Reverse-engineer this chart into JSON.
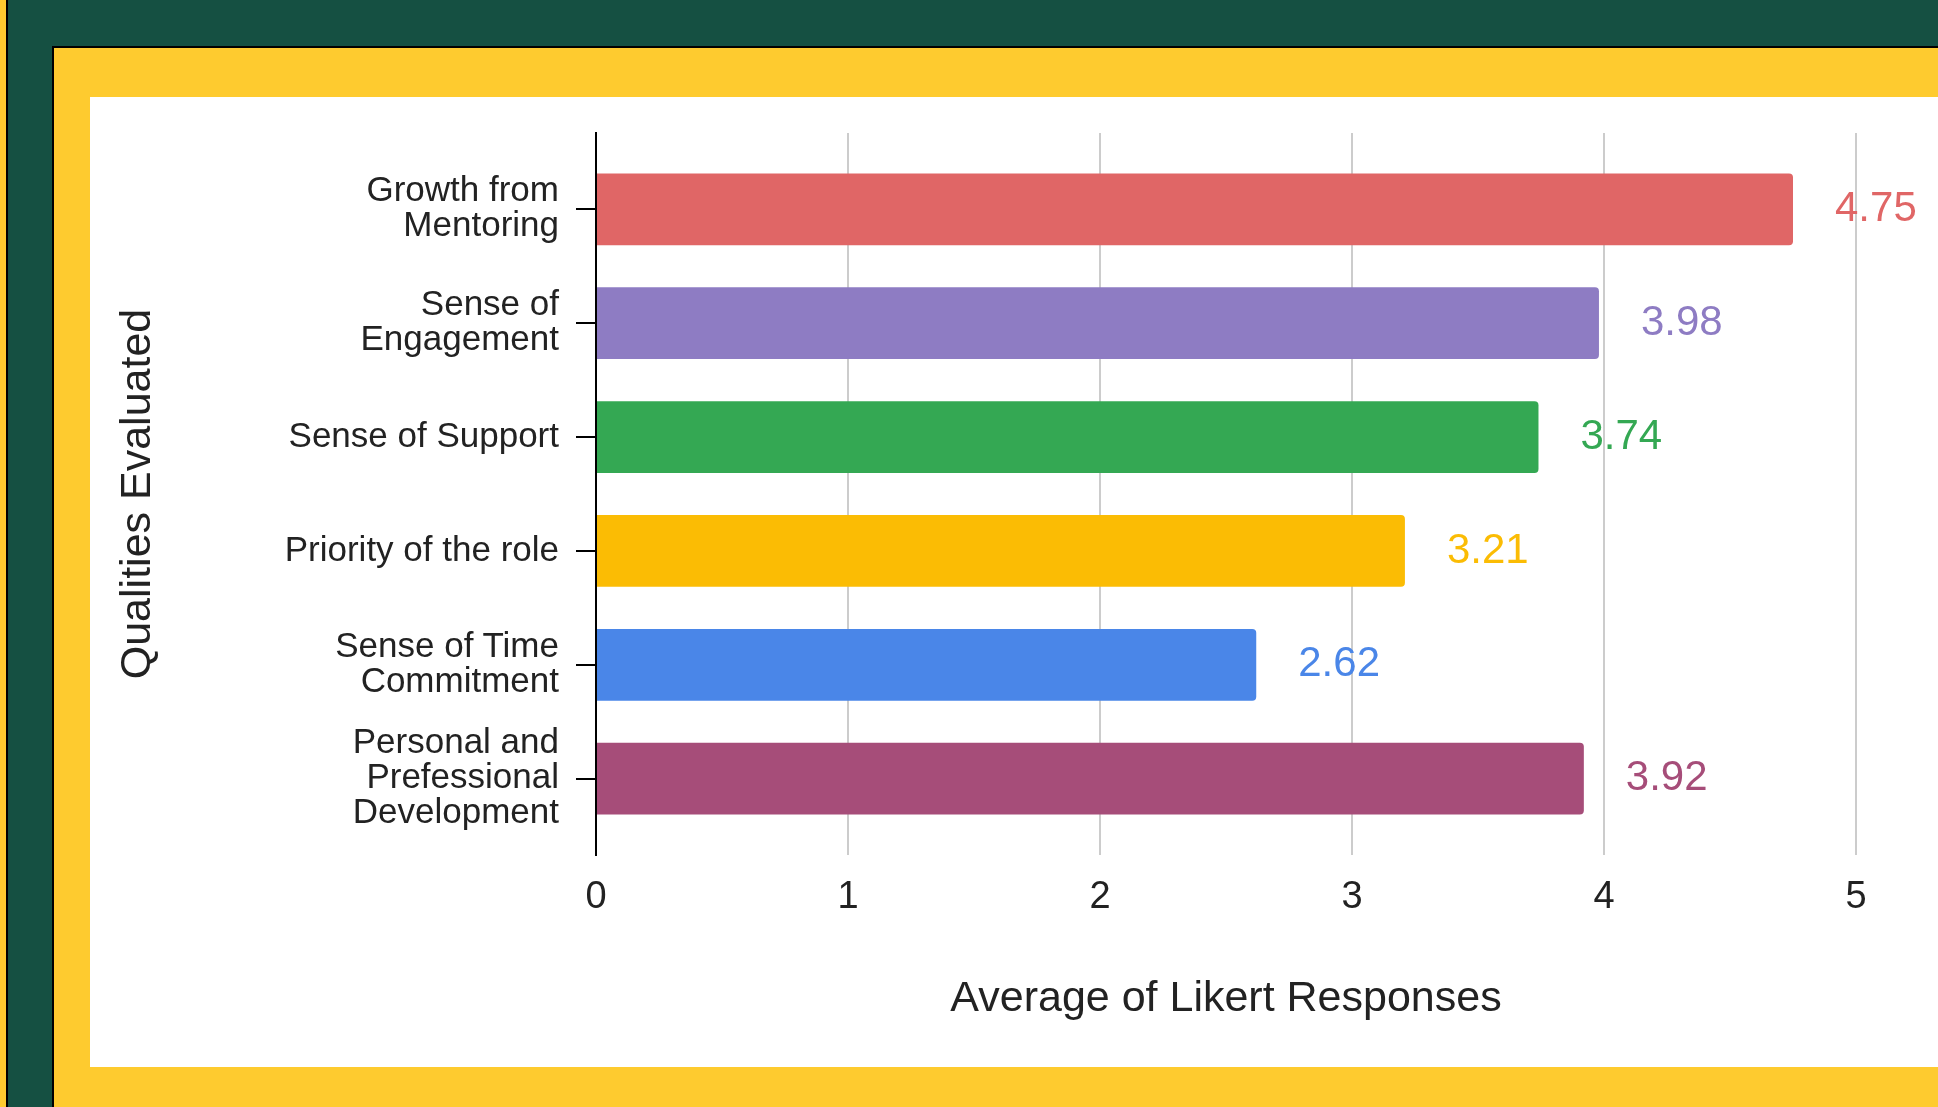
{
  "chart_data": {
    "type": "bar",
    "orientation": "horizontal",
    "xlabel": "Average of Likert Responses",
    "ylabel": "Qualities Evaluated",
    "categories": [
      "Growth from Mentoring",
      "Sense of Engagement",
      "Sense of Support",
      "Priority of the role",
      "Sense of Time Commitment",
      "Personal and Prefessional Development"
    ],
    "values": [
      4.75,
      3.98,
      3.74,
      3.21,
      2.62,
      3.92
    ],
    "colors": [
      "#e06666",
      "#8e7cc3",
      "#34a853",
      "#fbbc04",
      "#4a86e8",
      "#a64d79"
    ],
    "xlim": [
      0,
      5
    ],
    "xticks": [
      0,
      1,
      2,
      3,
      4,
      5
    ],
    "grid": "x",
    "data_labels": true,
    "legend": false
  }
}
